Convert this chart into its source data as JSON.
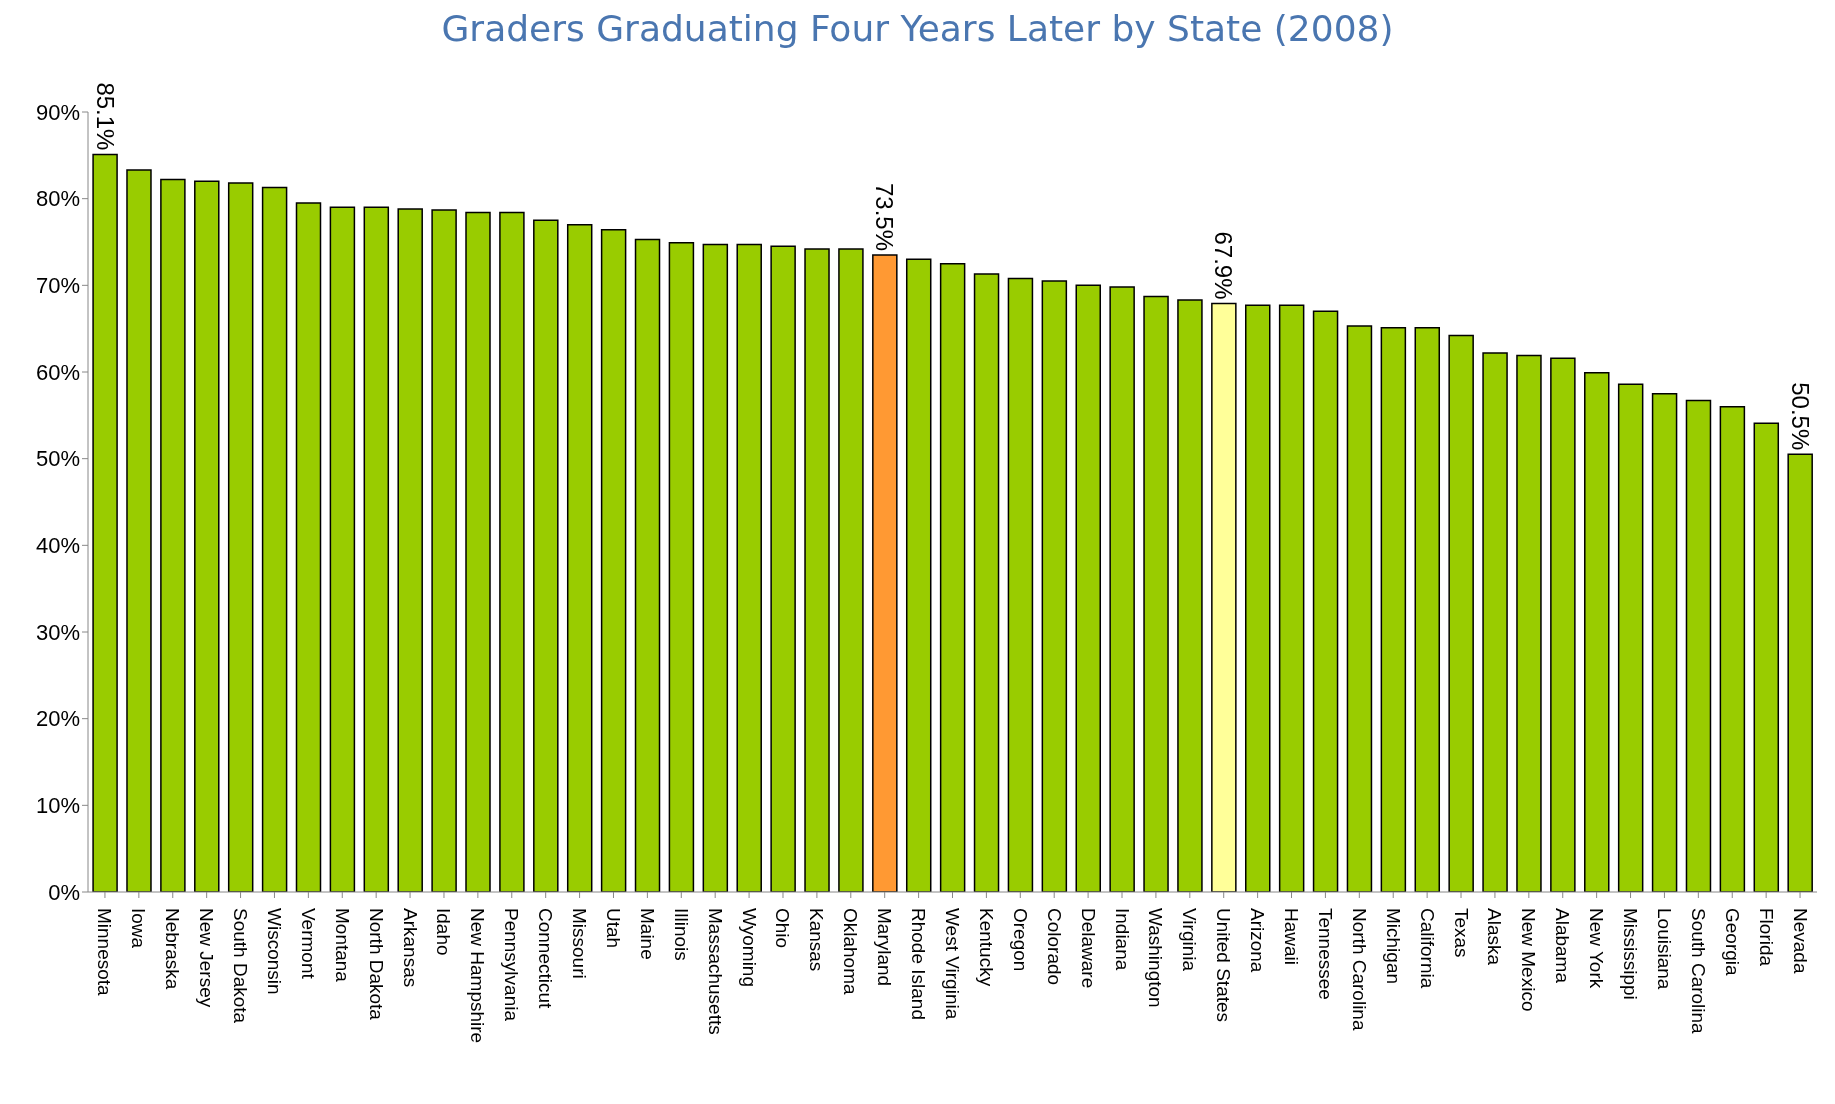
{
  "chart_data": {
    "type": "bar",
    "title": "Graders Graduating Four Years Later by State (2008)",
    "categories": [
      "Minnesota",
      "Iowa",
      "Nebraska",
      "New Jersey",
      "South Dakota",
      "Wisconsin",
      "Vermont",
      "Montana",
      "North Dakota",
      "Arkansas",
      "Idaho",
      "New Hampshire",
      "Pennsylvania",
      "Connecticut",
      "Missouri",
      "Utah",
      "Maine",
      "Illinois",
      "Massachusetts",
      "Wyoming",
      "Ohio",
      "Kansas",
      "Oklahoma",
      "Maryland",
      "Rhode Island",
      "West Virginia",
      "Kentucky",
      "Oregon",
      "Colorado",
      "Delaware",
      "Indiana",
      "Washington",
      "Virginia",
      "United States",
      "Arizona",
      "Hawaii",
      "Tennessee",
      "North Carolina",
      "Michigan",
      "California",
      "Texas",
      "Alaska",
      "New Mexico",
      "Alabama",
      "New York",
      "Mississippi",
      "Louisiana",
      "South Carolina",
      "Georgia",
      "Florida",
      "Nevada"
    ],
    "values": [
      85.1,
      83.3,
      82.2,
      82.0,
      81.8,
      81.3,
      79.5,
      79.0,
      79.0,
      78.8,
      78.7,
      78.4,
      78.4,
      77.5,
      77.0,
      76.4,
      75.3,
      74.9,
      74.7,
      74.7,
      74.5,
      74.2,
      74.2,
      73.5,
      73.0,
      72.5,
      71.3,
      70.8,
      70.5,
      70.0,
      69.8,
      68.7,
      68.3,
      67.9,
      67.7,
      67.7,
      67.0,
      65.3,
      65.1,
      65.1,
      64.2,
      62.2,
      61.9,
      61.6,
      59.9,
      58.6,
      57.5,
      56.7,
      56.0,
      54.1,
      50.5
    ],
    "colors": [
      "#99cc00",
      "#99cc00",
      "#99cc00",
      "#99cc00",
      "#99cc00",
      "#99cc00",
      "#99cc00",
      "#99cc00",
      "#99cc00",
      "#99cc00",
      "#99cc00",
      "#99cc00",
      "#99cc00",
      "#99cc00",
      "#99cc00",
      "#99cc00",
      "#99cc00",
      "#99cc00",
      "#99cc00",
      "#99cc00",
      "#99cc00",
      "#99cc00",
      "#99cc00",
      "#ff9933",
      "#99cc00",
      "#99cc00",
      "#99cc00",
      "#99cc00",
      "#99cc00",
      "#99cc00",
      "#99cc00",
      "#99cc00",
      "#99cc00",
      "#ffff99",
      "#99cc00",
      "#99cc00",
      "#99cc00",
      "#99cc00",
      "#99cc00",
      "#99cc00",
      "#99cc00",
      "#99cc00",
      "#99cc00",
      "#99cc00",
      "#99cc00",
      "#99cc00",
      "#99cc00",
      "#99cc00",
      "#99cc00",
      "#99cc00",
      "#99cc00"
    ],
    "value_labels": [
      "85.1%",
      null,
      null,
      null,
      null,
      null,
      null,
      null,
      null,
      null,
      null,
      null,
      null,
      null,
      null,
      null,
      null,
      null,
      null,
      null,
      null,
      null,
      null,
      "73.5%",
      null,
      null,
      null,
      null,
      null,
      null,
      null,
      null,
      null,
      "67.9%",
      null,
      null,
      null,
      null,
      null,
      null,
      null,
      null,
      null,
      null,
      null,
      null,
      null,
      null,
      null,
      null,
      "50.5%"
    ],
    "ylim": [
      0,
      90
    ],
    "yticks": [
      {
        "value": 0,
        "label": "0%"
      },
      {
        "value": 10,
        "label": "10%"
      },
      {
        "value": 20,
        "label": "20%"
      },
      {
        "value": 30,
        "label": "30%"
      },
      {
        "value": 40,
        "label": "40%"
      },
      {
        "value": 50,
        "label": "50%"
      },
      {
        "value": 60,
        "label": "60%"
      },
      {
        "value": 70,
        "label": "70%"
      },
      {
        "value": 80,
        "label": "80%"
      },
      {
        "value": 90,
        "label": "90%"
      }
    ],
    "grid": false,
    "legend": false
  }
}
